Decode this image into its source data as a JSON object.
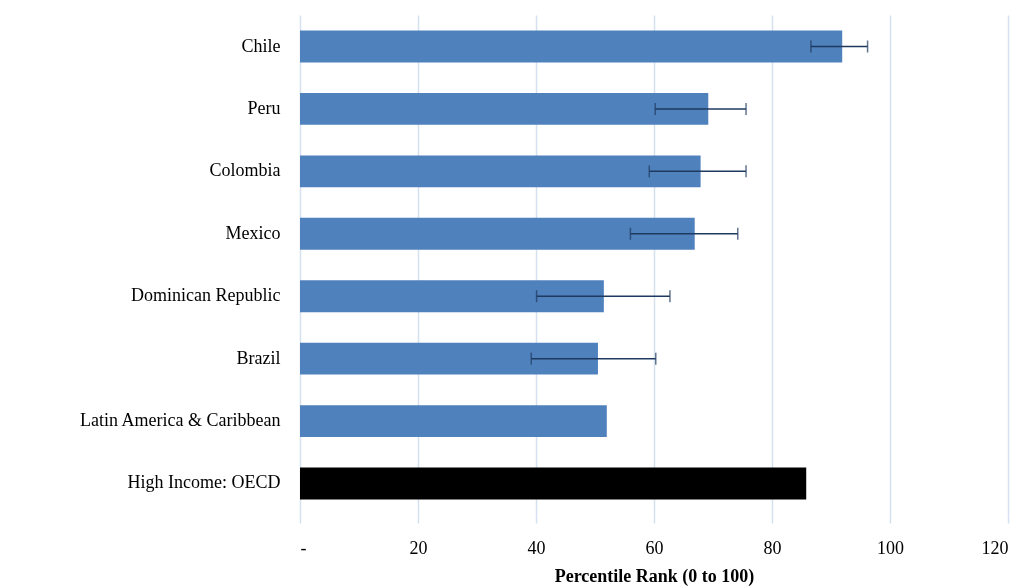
{
  "chart_data": {
    "type": "bar",
    "orientation": "horizontal",
    "categories": [
      "Chile",
      "Peru",
      "Colombia",
      "Mexico",
      "Dominican Republic",
      "Brazil",
      "Latin America & Caribbean",
      "High Income: OECD"
    ],
    "values": [
      91.9,
      69.2,
      67.9,
      66.9,
      51.5,
      50.5,
      52.0,
      85.8
    ],
    "errors": [
      [
        86.6,
        96.2
      ],
      [
        60.2,
        75.6
      ],
      [
        59.2,
        75.6
      ],
      [
        56.0,
        74.2
      ],
      [
        40.1,
        62.7
      ],
      [
        39.2,
        60.3
      ],
      null,
      null
    ],
    "colors": [
      "#4f81bd",
      "#4f81bd",
      "#4f81bd",
      "#4f81bd",
      "#4f81bd",
      "#4f81bd",
      "#4f81bd",
      "#000000"
    ],
    "xlabel": "Percentile Rank (0 to 100)",
    "xlim": [
      0,
      120
    ],
    "xticks": [
      {
        "value": 0,
        "label": "-"
      },
      20,
      40,
      60,
      80,
      100,
      120
    ],
    "grid": "x"
  }
}
